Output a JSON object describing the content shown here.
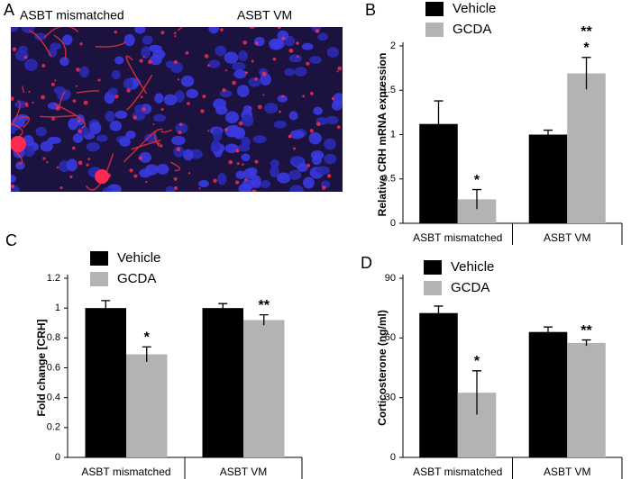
{
  "micrograph": {
    "panel_label": "A",
    "labels": [
      "ASBT mismatched",
      "ASBT VM"
    ]
  },
  "chart_data": [
    {
      "type": "bar",
      "panel_label": "B",
      "ylabel": "Relative CRH mRNA expression",
      "categories": [
        "ASBT mismatched",
        "ASBT VM"
      ],
      "series": [
        {
          "name": "Vehicle",
          "color": "#000000",
          "values": [
            1.12,
            1.0
          ],
          "errors": [
            0.26,
            0.05
          ]
        },
        {
          "name": "GCDA",
          "color": "#b3b3b3",
          "values": [
            0.27,
            1.69
          ],
          "errors": [
            0.11,
            0.18
          ],
          "annotations": [
            [
              "*"
            ],
            [
              "**",
              "*"
            ]
          ]
        }
      ],
      "ylim": [
        0,
        2
      ],
      "yticks": [
        0,
        0.5,
        1,
        1.5,
        2
      ]
    },
    {
      "type": "bar",
      "panel_label": "C",
      "ylabel": "Fold change [CRH]",
      "categories": [
        "ASBT mismatched",
        "ASBT VM"
      ],
      "series": [
        {
          "name": "Vehicle",
          "color": "#000000",
          "values": [
            1.0,
            1.0
          ],
          "errors": [
            0.05,
            0.03
          ]
        },
        {
          "name": "GCDA",
          "color": "#b3b3b3",
          "values": [
            0.69,
            0.92
          ],
          "errors": [
            0.05,
            0.035
          ],
          "annotations": [
            [
              "*"
            ],
            [
              "**"
            ]
          ]
        }
      ],
      "ylim": [
        0,
        1.2
      ],
      "yticks": [
        0,
        0.2,
        0.4,
        0.6,
        0.8,
        1,
        1.2
      ]
    },
    {
      "type": "bar",
      "panel_label": "D",
      "ylabel": "Corticosterone (ng/ml)",
      "categories": [
        "ASBT mismatched",
        "ASBT VM"
      ],
      "series": [
        {
          "name": "Vehicle",
          "color": "#000000",
          "values": [
            72.5,
            63
          ],
          "errors": [
            3.5,
            2.5
          ]
        },
        {
          "name": "GCDA",
          "color": "#b3b3b3",
          "values": [
            32.5,
            57.5
          ],
          "errors": [
            11,
            1.5
          ],
          "annotations": [
            [
              "*"
            ],
            [
              "**"
            ]
          ]
        }
      ],
      "ylim": [
        0,
        90
      ],
      "yticks": [
        0,
        30,
        60,
        90
      ]
    }
  ]
}
